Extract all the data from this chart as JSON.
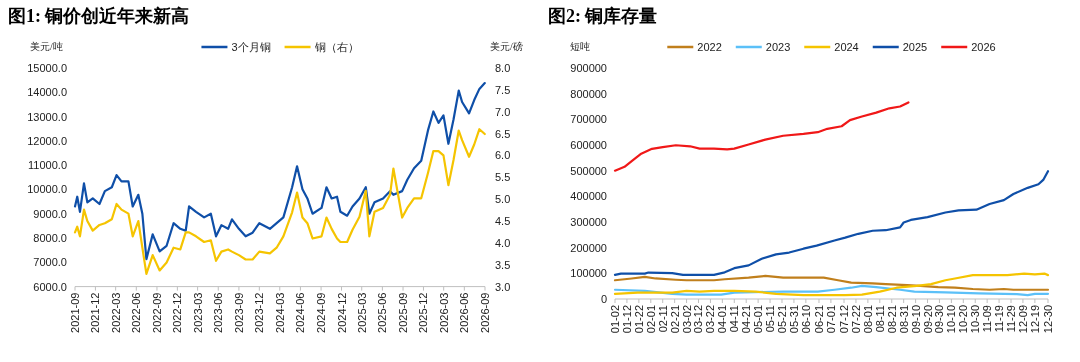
{
  "chart_data": [
    {
      "type": "line",
      "title": "图1: 铜价创近年来新高",
      "ylabel": "美元/吨",
      "y2label": "美元/磅",
      "legend": "top",
      "x": [
        "2021-09-01",
        "2021-09-11",
        "2021-09-23",
        "2021-10-11",
        "2021-10-26",
        "2021-11-19",
        "2021-12-19",
        "2022-01-12",
        "2022-02-12",
        "2022-03-05",
        "2022-03-27",
        "2022-04-27",
        "2022-05-16",
        "2022-06-10",
        "2022-06-28",
        "2022-07-16",
        "2022-08-13",
        "2022-09-13",
        "2022-10-14",
        "2022-11-14",
        "2022-12-14",
        "2023-01-07",
        "2023-01-22",
        "2023-02-22",
        "2023-03-30",
        "2023-04-29",
        "2023-05-22",
        "2023-06-15",
        "2023-07-15",
        "2023-08-01",
        "2023-09-01",
        "2023-10-01",
        "2023-11-01",
        "2023-12-01",
        "2024-01-17",
        "2024-02-16",
        "2024-03-17",
        "2024-04-25",
        "2024-05-17",
        "2024-06-10",
        "2024-07-02",
        "2024-07-25",
        "2024-09-03",
        "2024-09-25",
        "2024-10-18",
        "2024-11-11",
        "2024-11-26",
        "2024-12-26",
        "2025-01-19",
        "2025-02-19",
        "2025-03-19",
        "2025-04-04",
        "2025-04-27",
        "2025-06-04",
        "2025-07-05",
        "2025-07-20",
        "2025-08-28",
        "2025-09-20",
        "2025-10-20",
        "2025-11-21",
        "2025-12-21",
        "2026-01-14",
        "2026-02-06",
        "2026-02-28",
        "2026-03-22",
        "2026-04-14",
        "2026-05-07",
        "2026-05-22",
        "2026-06-22",
        "2026-07-15",
        "2026-08-07",
        "2026-08-31"
      ],
      "xlim": [
        "2021-09",
        "2026-09"
      ],
      "xticks": [
        "2021-09",
        "2021-12",
        "2022-03",
        "2022-06",
        "2022-09",
        "2022-12",
        "2023-03",
        "2023-06",
        "2023-09",
        "2023-12",
        "2024-03",
        "2024-06",
        "2024-09",
        "2024-12",
        "2025-03",
        "2025-06",
        "2025-09",
        "2025-12",
        "2026-03",
        "2026-06",
        "2026-09"
      ],
      "ylim": [
        6000,
        15000
      ],
      "yticks": [
        {
          "value": 6000,
          "label": "6000.0"
        },
        {
          "value": 7000,
          "label": "7000.0"
        },
        {
          "value": 8000,
          "label": "8000.0"
        },
        {
          "value": 9000,
          "label": "9000.0"
        },
        {
          "value": 10000,
          "label": "10000.0"
        },
        {
          "value": 11000,
          "label": "11000.0"
        },
        {
          "value": 12000,
          "label": "12000.0"
        },
        {
          "value": 13000,
          "label": "13000.0"
        },
        {
          "value": 14000,
          "label": "14000.0"
        },
        {
          "value": 15000,
          "label": "15000.0"
        }
      ],
      "y2lim": [
        3,
        8
      ],
      "y2ticks": [
        {
          "value": 3,
          "label": "3.0"
        },
        {
          "value": 3.5,
          "label": "3.5"
        },
        {
          "value": 4,
          "label": "4.0"
        },
        {
          "value": 4.5,
          "label": "4.5"
        },
        {
          "value": 5,
          "label": "5.0"
        },
        {
          "value": 5.5,
          "label": "5.5"
        },
        {
          "value": 6,
          "label": "6.0"
        },
        {
          "value": 6.5,
          "label": "6.5"
        },
        {
          "value": 7,
          "label": "7.0"
        },
        {
          "value": 7.5,
          "label": "7.5"
        },
        {
          "value": 8,
          "label": "8.0"
        }
      ],
      "series": [
        {
          "name": "3个月铜",
          "color": "#0f4fa8",
          "values": [
            9300,
            9700,
            9080,
            10250,
            9470,
            9630,
            9400,
            9930,
            10090,
            10590,
            10330,
            10330,
            9300,
            9780,
            9000,
            7130,
            8150,
            7450,
            7680,
            8610,
            8380,
            8300,
            9300,
            9080,
            8850,
            9000,
            8070,
            8530,
            8380,
            8770,
            8380,
            8070,
            8220,
            8610,
            8380,
            8610,
            8850,
            10090,
            10950,
            10010,
            9630,
            9000,
            9240,
            10090,
            9630,
            9700,
            9080,
            8920,
            9300,
            9630,
            10090,
            9000,
            9470,
            9630,
            9930,
            9780,
            9930,
            10400,
            10870,
            11180,
            12430,
            13210,
            12740,
            13050,
            11880,
            12890,
            14070,
            13600,
            13130,
            13680,
            14140,
            14380
          ]
        },
        {
          "name": "铜（右）",
          "color": "#f5c400",
          "axis": "y2",
          "values": [
            4.24,
            4.37,
            4.15,
            4.76,
            4.5,
            4.28,
            4.41,
            4.45,
            4.54,
            4.89,
            4.76,
            4.67,
            4.15,
            4.5,
            3.89,
            3.29,
            3.72,
            3.37,
            3.55,
            3.89,
            3.85,
            4.24,
            4.24,
            4.15,
            4.02,
            4.06,
            3.59,
            3.8,
            3.85,
            3.8,
            3.72,
            3.62,
            3.62,
            3.8,
            3.76,
            3.89,
            4.15,
            4.7,
            5.15,
            4.58,
            4.45,
            4.1,
            4.15,
            4.58,
            4.32,
            4.1,
            4.02,
            4.02,
            4.3,
            4.6,
            5.19,
            4.15,
            4.71,
            4.8,
            5.1,
            5.7,
            4.58,
            4.8,
            5.02,
            5.02,
            5.6,
            6.1,
            6.1,
            6.0,
            5.32,
            5.9,
            6.57,
            6.35,
            5.97,
            6.25,
            6.6,
            6.49
          ]
        }
      ]
    },
    {
      "type": "line",
      "title": "图2: 铜库存量",
      "ylabel": "短吨",
      "legend": "top",
      "xlim": [
        "--01-02",
        "--12-30"
      ],
      "xticks": [
        {
          "value": "--01-02",
          "label": "01-02"
        },
        {
          "value": "--01-12",
          "label": "01-12"
        },
        {
          "value": "--01-22",
          "label": "01-22"
        },
        {
          "value": "--02-01",
          "label": "02-01"
        },
        {
          "value": "--02-11",
          "label": "02-11"
        },
        {
          "value": "--02-21",
          "label": "02-21"
        },
        {
          "value": "--03-02",
          "label": "03-02"
        },
        {
          "value": "--03-12",
          "label": "03-12"
        },
        {
          "value": "--03-22",
          "label": "03-22"
        },
        {
          "value": "--04-01",
          "label": "04-01"
        },
        {
          "value": "--04-11",
          "label": "04-11"
        },
        {
          "value": "--04-21",
          "label": "04-21"
        },
        {
          "value": "--05-01",
          "label": "05-01"
        },
        {
          "value": "--05-11",
          "label": "05-11"
        },
        {
          "value": "--05-21",
          "label": "05-21"
        },
        {
          "value": "--05-31",
          "label": "05-31"
        },
        {
          "value": "--06-10",
          "label": "06-10"
        },
        {
          "value": "--06-21",
          "label": "06-21"
        },
        {
          "value": "--07-01",
          "label": "07-01"
        },
        {
          "value": "--07-12",
          "label": "07-12"
        },
        {
          "value": "--07-22",
          "label": "07-22"
        },
        {
          "value": "--08-01",
          "label": "08-01"
        },
        {
          "value": "--08-11",
          "label": "08-11"
        },
        {
          "value": "--08-21",
          "label": "08-21"
        },
        {
          "value": "--08-31",
          "label": "08-31"
        },
        {
          "value": "--09-10",
          "label": "09-10"
        },
        {
          "value": "--09-20",
          "label": "09-20"
        },
        {
          "value": "--09-30",
          "label": "09-30"
        },
        {
          "value": "--10-10",
          "label": "10-10"
        },
        {
          "value": "--10-20",
          "label": "10-20"
        },
        {
          "value": "--10-30",
          "label": "10-30"
        },
        {
          "value": "--11-09",
          "label": "11-09"
        },
        {
          "value": "--11-19",
          "label": "11-19"
        },
        {
          "value": "--11-29",
          "label": "11-29"
        },
        {
          "value": "--12-09",
          "label": "12-09"
        },
        {
          "value": "--12-19",
          "label": "12-19"
        },
        {
          "value": "--12-30",
          "label": "12-30"
        }
      ],
      "ylim": [
        0,
        900000
      ],
      "yticks": [
        0,
        100000,
        200000,
        300000,
        400000,
        500000,
        600000,
        700000,
        800000,
        900000
      ],
      "series": [
        {
          "name": "2022",
          "color": "#c07f1c",
          "x": [
            "--01-02",
            "--01-16",
            "--01-27",
            "--02-05",
            "--02-22",
            "--03-02",
            "--03-25",
            "--04-03",
            "--04-23",
            "--05-07",
            "--05-22",
            "--06-25",
            "--07-07",
            "--07-18",
            "--08-05",
            "--08-16",
            "--09-03",
            "--09-14",
            "--09-29",
            "--10-13",
            "--10-28",
            "--11-11",
            "--11-23",
            "--12-01",
            "--12-30"
          ],
          "values": [
            73000,
            80000,
            86000,
            80000,
            75000,
            73000,
            73000,
            77000,
            83000,
            90000,
            83000,
            83000,
            73000,
            64000,
            61000,
            58000,
            54000,
            51000,
            46000,
            44000,
            39000,
            36000,
            39000,
            36000,
            36000
          ]
        },
        {
          "name": "2023",
          "color": "#5bc0f8",
          "x": [
            "--01-02",
            "--01-27",
            "--02-19",
            "--03-02",
            "--03-31",
            "--04-11",
            "--05-22",
            "--06-20",
            "--07-04",
            "--07-18",
            "--07-27",
            "--08-08",
            "--08-28",
            "--09-09",
            "--10-05",
            "--11-02",
            "--12-04",
            "--12-13",
            "--12-19",
            "--12-30"
          ],
          "values": [
            36000,
            32000,
            20000,
            17000,
            17000,
            25000,
            29000,
            29000,
            36000,
            44000,
            51000,
            46000,
            36000,
            29000,
            26000,
            22000,
            19000,
            15000,
            20000,
            20000
          ]
        },
        {
          "name": "2024",
          "color": "#f5c400",
          "x": [
            "--01-02",
            "--01-21",
            "--02-19",
            "--03-02",
            "--03-13",
            "--03-25",
            "--04-11",
            "--04-29",
            "--05-16",
            "--06-08",
            "--07-13",
            "--07-27",
            "--08-11",
            "--08-25",
            "--09-11",
            "--09-23",
            "--10-05",
            "--10-13",
            "--10-28",
            "--11-11",
            "--11-26",
            "--12-10",
            "--12-19",
            "--12-27",
            "--12-30"
          ],
          "values": [
            20000,
            25000,
            25000,
            32000,
            29000,
            32000,
            32000,
            29000,
            20000,
            15000,
            15000,
            17000,
            29000,
            44000,
            51000,
            58000,
            73000,
            80000,
            93000,
            93000,
            93000,
            99000,
            96000,
            99000,
            93000
          ]
        },
        {
          "name": "2025",
          "color": "#0f4fa8",
          "x": [
            "--01-02",
            "--01-07",
            "--01-27",
            "--01-30",
            "--02-19",
            "--02-28",
            "--03-25",
            "--04-03",
            "--04-11",
            "--04-23",
            "--05-04",
            "--05-16",
            "--05-27",
            "--06-08",
            "--06-19",
            "--07-04",
            "--07-13",
            "--07-24",
            "--08-05",
            "--08-16",
            "--08-28",
            "--08-31",
            "--09-06",
            "--09-20",
            "--10-05",
            "--10-16",
            "--10-31",
            "--11-11",
            "--11-23",
            "--12-01",
            "--12-13",
            "--12-22",
            "--12-26",
            "--12-30"
          ],
          "values": [
            94000,
            99000,
            99000,
            103000,
            101000,
            94000,
            94000,
            104000,
            120000,
            131000,
            157000,
            174000,
            181000,
            196000,
            208000,
            228000,
            239000,
            254000,
            266000,
            268000,
            279000,
            298000,
            308000,
            319000,
            337000,
            345000,
            348000,
            370000,
            385000,
            409000,
            433000,
            447000,
            464000,
            498000
          ]
        },
        {
          "name": "2026",
          "color": "#f01818",
          "x": [
            "--01-02",
            "--01-10",
            "--01-16",
            "--01-24",
            "--02-02",
            "--02-11",
            "--02-22",
            "--03-05",
            "--03-13",
            "--03-25",
            "--04-05",
            "--04-11",
            "--04-23",
            "--05-07",
            "--05-22",
            "--06-08",
            "--06-20",
            "--06-28",
            "--07-10",
            "--07-17",
            "--07-27",
            "--08-08",
            "--08-19",
            "--08-28",
            "--09-04"
          ],
          "values": [
            500000,
            515000,
            537000,
            566000,
            585000,
            592000,
            599000,
            595000,
            586000,
            586000,
            583000,
            586000,
            602000,
            621000,
            636000,
            643000,
            650000,
            663000,
            673000,
            697000,
            711000,
            726000,
            743000,
            750000,
            766000
          ]
        }
      ]
    }
  ]
}
